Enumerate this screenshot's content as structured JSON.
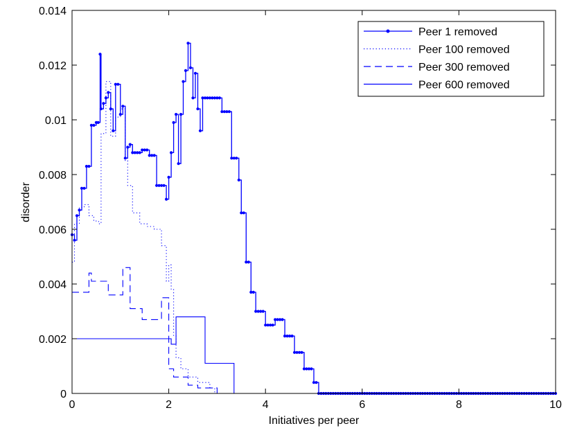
{
  "chart_data": {
    "type": "line",
    "title": "",
    "xlabel": "Initiatives per peer",
    "ylabel": "disorder",
    "xlim": [
      0,
      10
    ],
    "ylim": [
      0,
      0.014
    ],
    "x_ticks": [
      "0",
      "2",
      "4",
      "6",
      "8",
      "10"
    ],
    "y_ticks": [
      "0",
      "0.002",
      "0.004",
      "0.006",
      "0.008",
      "0.01",
      "0.012",
      "0.014"
    ],
    "grid": false,
    "legend_position": "top-right",
    "colors": {
      "series": "#0000ff",
      "axes": "#000000",
      "background": "#ffffff"
    },
    "series": [
      {
        "name": "Peer 1 removed",
        "line_style": "solid",
        "marker": "dot",
        "x": [
          0,
          0.05,
          0.1,
          0.15,
          0.2,
          0.3,
          0.4,
          0.5,
          0.58,
          0.6,
          0.65,
          0.7,
          0.75,
          0.8,
          0.85,
          0.9,
          0.95,
          1.0,
          1.05,
          1.1,
          1.15,
          1.2,
          1.25,
          1.35,
          1.45,
          1.6,
          1.75,
          1.85,
          1.95,
          2.0,
          2.05,
          2.1,
          2.15,
          2.2,
          2.25,
          2.3,
          2.35,
          2.4,
          2.45,
          2.5,
          2.55,
          2.6,
          2.65,
          2.7,
          2.8,
          2.95,
          3.1,
          3.3,
          3.45,
          3.5,
          3.6,
          3.7,
          3.8,
          4.0,
          4.2,
          4.4,
          4.6,
          4.8,
          5.0,
          5.1,
          5.5,
          6.0,
          7.0,
          8.0,
          9.0,
          10.0
        ],
        "y": [
          0.0058,
          0.0056,
          0.0065,
          0.0067,
          0.0075,
          0.0083,
          0.0098,
          0.0099,
          0.0124,
          0.0104,
          0.0106,
          0.0108,
          0.011,
          0.0104,
          0.0096,
          0.0113,
          0.0113,
          0.0102,
          0.0105,
          0.0086,
          0.009,
          0.0091,
          0.0088,
          0.0088,
          0.0089,
          0.0087,
          0.0076,
          0.0076,
          0.0071,
          0.0079,
          0.0088,
          0.0099,
          0.0102,
          0.0084,
          0.0102,
          0.0114,
          0.0118,
          0.0128,
          0.0119,
          0.0108,
          0.0117,
          0.0104,
          0.0096,
          0.0108,
          0.0108,
          0.0108,
          0.0103,
          0.0086,
          0.0078,
          0.0066,
          0.0048,
          0.0037,
          0.003,
          0.0025,
          0.0027,
          0.0021,
          0.0015,
          0.0009,
          0.0004,
          0.0,
          0.0,
          0.0,
          0.0,
          0.0,
          0.0,
          0.0
        ]
      },
      {
        "name": "Peer 100 removed",
        "line_style": "dotted",
        "marker": "none",
        "x": [
          0,
          0.05,
          0.15,
          0.25,
          0.35,
          0.45,
          0.55,
          0.6,
          0.7,
          0.8,
          0.9,
          1.0,
          1.1,
          1.15,
          1.25,
          1.4,
          1.55,
          1.7,
          1.85,
          1.95,
          2.0,
          2.05,
          2.1,
          2.15,
          2.25,
          2.4,
          2.6,
          2.85,
          2.95
        ],
        "y": [
          0.0048,
          0.0062,
          0.0068,
          0.0069,
          0.0065,
          0.0063,
          0.0062,
          0.0095,
          0.0114,
          0.0094,
          0.0101,
          0.0104,
          0.0085,
          0.0076,
          0.0066,
          0.0062,
          0.0061,
          0.006,
          0.0054,
          0.0041,
          0.0047,
          0.0038,
          0.0021,
          0.0013,
          0.0009,
          0.0006,
          0.0004,
          0.0002,
          0.0
        ]
      },
      {
        "name": "Peer 300 removed",
        "line_style": "dashed",
        "marker": "none",
        "x": [
          0,
          0.35,
          0.4,
          0.75,
          1.05,
          1.2,
          1.45,
          1.85,
          2.0,
          2.1,
          2.4,
          2.6,
          3.0
        ],
        "y": [
          0.0037,
          0.0044,
          0.0041,
          0.0036,
          0.0046,
          0.0031,
          0.0027,
          0.0035,
          0.0009,
          0.0006,
          0.0003,
          0.0002,
          0.0
        ]
      },
      {
        "name": "Peer 600 removed",
        "line_style": "solid",
        "marker": "none",
        "x": [
          0,
          2.05,
          2.15,
          2.5,
          2.75,
          3.35
        ],
        "y": [
          0.002,
          0.0018,
          0.0028,
          0.0028,
          0.0011,
          0.0
        ]
      }
    ]
  }
}
